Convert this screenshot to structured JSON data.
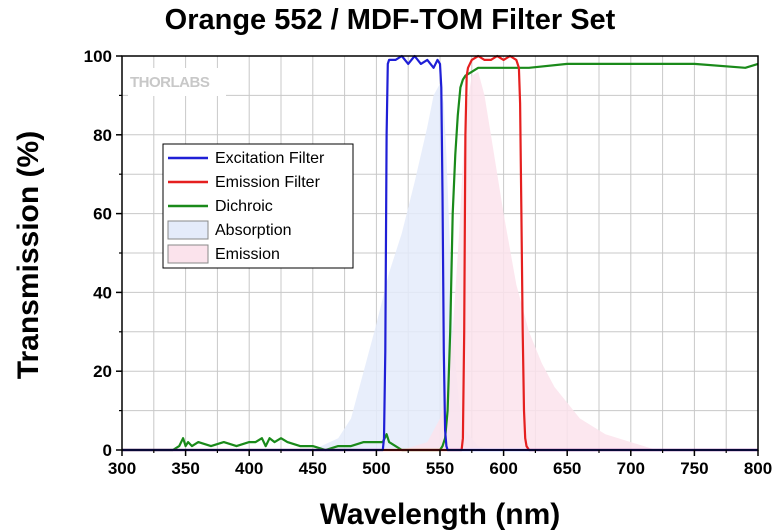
{
  "title": "Orange 552 / MDF-TOM Filter Set",
  "watermark": "THORLABS",
  "chart_data": {
    "type": "line",
    "xlabel": "Wavelength (nm)",
    "ylabel": "Transmission (%)",
    "xlim": [
      300,
      800
    ],
    "ylim": [
      0,
      100
    ],
    "xticks": [
      300,
      350,
      400,
      450,
      500,
      550,
      600,
      650,
      700,
      750,
      800
    ],
    "yticks": [
      0,
      20,
      40,
      60,
      80,
      100
    ],
    "grid": true,
    "legend_position": "upper-left",
    "series": [
      {
        "name": "Excitation Filter",
        "kind": "line",
        "color": "#1f1fd6",
        "x": [
          300,
          505,
          506,
          507,
          508,
          509,
          510,
          515,
          520,
          525,
          530,
          535,
          540,
          545,
          548,
          550,
          551,
          552,
          553,
          554,
          555,
          556,
          557,
          800
        ],
        "y": [
          0,
          0,
          3,
          25,
          80,
          98,
          99,
          99,
          100,
          98,
          100,
          98,
          99,
          97,
          99,
          98,
          92,
          65,
          25,
          5,
          1,
          0,
          0,
          0
        ]
      },
      {
        "name": "Emission Filter",
        "kind": "line",
        "color": "#e51f1f",
        "x": [
          300,
          567,
          568,
          569,
          570,
          571,
          572,
          575,
          580,
          585,
          590,
          595,
          600,
          605,
          610,
          612,
          613,
          614,
          615,
          616,
          617,
          618,
          620,
          800
        ],
        "y": [
          0,
          0,
          3,
          30,
          80,
          95,
          97,
          99,
          100,
          99,
          99,
          100,
          99,
          100,
          99,
          97,
          88,
          60,
          30,
          10,
          3,
          1,
          0,
          0
        ]
      },
      {
        "name": "Dichroic",
        "kind": "line",
        "color": "#1a8a1a",
        "x": [
          300,
          340,
          345,
          348,
          350,
          352,
          355,
          360,
          370,
          380,
          390,
          400,
          405,
          410,
          413,
          416,
          420,
          425,
          430,
          440,
          450,
          460,
          470,
          480,
          490,
          500,
          505,
          508,
          510,
          515,
          520,
          530,
          540,
          545,
          550,
          552,
          554,
          556,
          558,
          560,
          562,
          564,
          566,
          568,
          570,
          575,
          580,
          600,
          620,
          650,
          700,
          750,
          790,
          800
        ],
        "y": [
          0,
          0,
          1,
          3,
          1,
          2,
          1,
          2,
          1,
          2,
          1,
          2,
          2,
          3,
          1,
          3,
          2,
          3,
          2,
          1,
          1,
          0,
          1,
          1,
          2,
          2,
          2,
          4,
          2,
          1,
          0,
          0,
          0,
          0,
          0,
          1,
          3,
          10,
          30,
          60,
          75,
          85,
          92,
          94,
          95,
          96,
          97,
          97,
          97,
          98,
          98,
          98,
          97,
          98
        ]
      },
      {
        "name": "Absorption",
        "kind": "area",
        "color": "#e4ebfa",
        "x": [
          300,
          450,
          470,
          480,
          490,
          500,
          510,
          520,
          530,
          540,
          545,
          550,
          553,
          555,
          558,
          560,
          565,
          570,
          580,
          590,
          600,
          800
        ],
        "y": [
          0,
          0,
          3,
          8,
          20,
          32,
          45,
          55,
          68,
          82,
          90,
          93,
          88,
          75,
          50,
          30,
          12,
          5,
          1,
          0,
          0,
          0
        ]
      },
      {
        "name": "Emission",
        "kind": "area",
        "color": "#fbe3ec",
        "x": [
          300,
          520,
          540,
          550,
          555,
          560,
          565,
          570,
          575,
          580,
          585,
          590,
          600,
          610,
          620,
          630,
          640,
          650,
          660,
          680,
          700,
          720,
          800
        ],
        "y": [
          0,
          0,
          2,
          8,
          15,
          30,
          55,
          85,
          95,
          96,
          90,
          80,
          60,
          42,
          30,
          22,
          16,
          12,
          8,
          4,
          2,
          0,
          0
        ]
      }
    ]
  }
}
